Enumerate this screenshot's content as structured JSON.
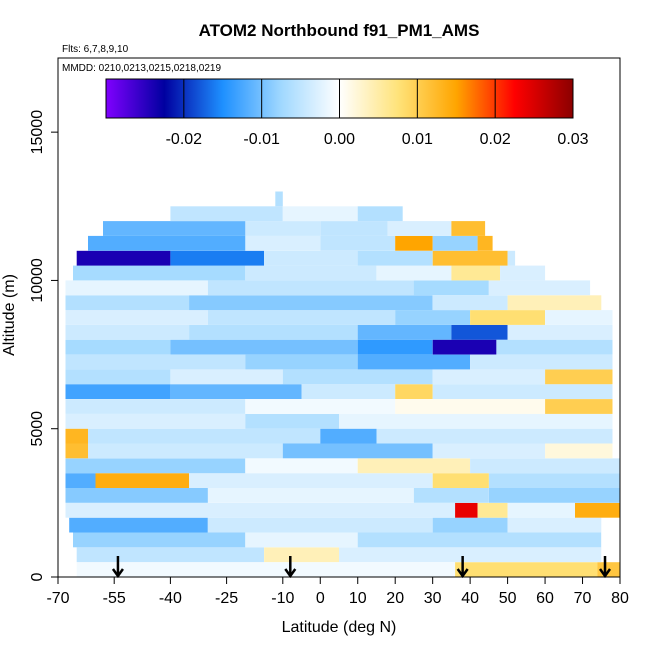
{
  "chart_data": {
    "type": "heatmap",
    "title": "ATOM2 Northbound f91_PM1_AMS",
    "flights_note": "Flts: 6,7,8,9,10",
    "dates_note": "MMDD: 0210,0213,0215,0218,0219",
    "xlabel": "Latitude (deg N)",
    "ylabel": "Altitude (m)",
    "xlim": [
      -70,
      80
    ],
    "ylim": [
      0,
      17500
    ],
    "x_ticks": [
      -70,
      -55,
      -40,
      -25,
      -10,
      0,
      10,
      20,
      30,
      40,
      50,
      60,
      70,
      80
    ],
    "y_ticks": [
      0,
      5000,
      10000,
      15000
    ],
    "colorbar": {
      "range": [
        -0.03,
        0.03
      ],
      "ticks": [
        -0.02,
        -0.01,
        0.0,
        0.01,
        0.02,
        0.03
      ],
      "tick_labels": [
        "-0.02",
        "-0.01",
        "0.00",
        "0.01",
        "0.02",
        "0.03"
      ],
      "colors": [
        "#8000ff",
        "#0000a0",
        "#1e90ff",
        "#a0d8ff",
        "#ffffff",
        "#ffe37a",
        "#ffa500",
        "#ff0000",
        "#8b0000"
      ]
    },
    "arrows_latitude": [
      -54,
      -8,
      38,
      76
    ],
    "bands": [
      {
        "y0": 0,
        "y1": 500,
        "segs": [
          [
            -65,
            36,
            -0.001
          ],
          [
            36,
            74,
            0.008
          ],
          [
            74,
            80,
            0.011
          ]
        ]
      },
      {
        "y0": 500,
        "y1": 1000,
        "segs": [
          [
            -65,
            -15,
            -0.005
          ],
          [
            -15,
            5,
            0.004
          ],
          [
            5,
            75,
            -0.003
          ]
        ]
      },
      {
        "y0": 1000,
        "y1": 1500,
        "segs": [
          [
            -66,
            -20,
            -0.008
          ],
          [
            -20,
            10,
            -0.002
          ],
          [
            10,
            75,
            -0.006
          ]
        ]
      },
      {
        "y0": 1500,
        "y1": 2000,
        "segs": [
          [
            -67,
            -30,
            -0.012
          ],
          [
            -30,
            30,
            -0.004
          ],
          [
            30,
            50,
            -0.008
          ],
          [
            50,
            75,
            -0.003
          ]
        ]
      },
      {
        "y0": 2000,
        "y1": 2500,
        "segs": [
          [
            -68,
            36,
            -0.003
          ],
          [
            36,
            42,
            0.024
          ],
          [
            42,
            50,
            0.006
          ],
          [
            50,
            68,
            -0.002
          ],
          [
            68,
            80,
            0.014
          ]
        ]
      },
      {
        "y0": 2500,
        "y1": 3000,
        "segs": [
          [
            -68,
            -30,
            -0.009
          ],
          [
            -30,
            25,
            -0.002
          ],
          [
            25,
            45,
            -0.006
          ],
          [
            45,
            80,
            -0.008
          ]
        ]
      },
      {
        "y0": 3000,
        "y1": 3500,
        "segs": [
          [
            -68,
            -60,
            -0.012
          ],
          [
            -60,
            -35,
            0.014
          ],
          [
            -35,
            30,
            -0.003
          ],
          [
            30,
            45,
            0.008
          ],
          [
            45,
            80,
            -0.006
          ]
        ]
      },
      {
        "y0": 3500,
        "y1": 4000,
        "segs": [
          [
            -68,
            -20,
            -0.008
          ],
          [
            -20,
            10,
            -0.001
          ],
          [
            10,
            40,
            0.004
          ],
          [
            40,
            80,
            -0.004
          ]
        ]
      },
      {
        "y0": 4000,
        "y1": 4500,
        "segs": [
          [
            -68,
            -62,
            0.012
          ],
          [
            -62,
            -10,
            -0.004
          ],
          [
            -10,
            30,
            -0.01
          ],
          [
            30,
            60,
            -0.003
          ],
          [
            60,
            78,
            0.002
          ]
        ]
      },
      {
        "y0": 4500,
        "y1": 5000,
        "segs": [
          [
            -68,
            -62,
            0.013
          ],
          [
            -62,
            0,
            -0.005
          ],
          [
            0,
            15,
            -0.012
          ],
          [
            15,
            78,
            -0.004
          ]
        ]
      },
      {
        "y0": 5000,
        "y1": 5500,
        "segs": [
          [
            -68,
            -20,
            -0.003
          ],
          [
            -20,
            5,
            -0.006
          ],
          [
            5,
            78,
            -0.002
          ]
        ]
      },
      {
        "y0": 5500,
        "y1": 6000,
        "segs": [
          [
            -68,
            -20,
            -0.004
          ],
          [
            -20,
            20,
            -0.001
          ],
          [
            20,
            60,
            0.001
          ],
          [
            60,
            78,
            0.01
          ]
        ]
      },
      {
        "y0": 6000,
        "y1": 6500,
        "segs": [
          [
            -68,
            -40,
            -0.013
          ],
          [
            -40,
            -5,
            -0.011
          ],
          [
            -5,
            20,
            -0.004
          ],
          [
            20,
            30,
            0.009
          ],
          [
            30,
            78,
            -0.004
          ]
        ]
      },
      {
        "y0": 6500,
        "y1": 7000,
        "segs": [
          [
            -68,
            -40,
            -0.006
          ],
          [
            -40,
            -10,
            -0.003
          ],
          [
            -10,
            30,
            -0.006
          ],
          [
            30,
            60,
            -0.003
          ],
          [
            60,
            78,
            0.01
          ]
        ]
      },
      {
        "y0": 7000,
        "y1": 7500,
        "segs": [
          [
            -68,
            -20,
            -0.005
          ],
          [
            -20,
            10,
            -0.008
          ],
          [
            10,
            40,
            -0.012
          ],
          [
            40,
            78,
            -0.004
          ]
        ]
      },
      {
        "y0": 7500,
        "y1": 8000,
        "segs": [
          [
            -68,
            -40,
            -0.007
          ],
          [
            -40,
            10,
            -0.01
          ],
          [
            10,
            30,
            -0.014
          ],
          [
            30,
            47,
            -0.024
          ],
          [
            47,
            78,
            -0.006
          ]
        ]
      },
      {
        "y0": 8000,
        "y1": 8500,
        "segs": [
          [
            -68,
            -35,
            -0.004
          ],
          [
            -35,
            10,
            -0.006
          ],
          [
            10,
            35,
            -0.011
          ],
          [
            35,
            50,
            -0.018
          ],
          [
            50,
            78,
            -0.003
          ]
        ]
      },
      {
        "y0": 8500,
        "y1": 9000,
        "segs": [
          [
            -68,
            -30,
            -0.003
          ],
          [
            -30,
            20,
            -0.005
          ],
          [
            20,
            40,
            -0.008
          ],
          [
            40,
            60,
            0.008
          ],
          [
            60,
            78,
            -0.002
          ]
        ]
      },
      {
        "y0": 9000,
        "y1": 9500,
        "segs": [
          [
            -68,
            -35,
            -0.006
          ],
          [
            -35,
            30,
            -0.009
          ],
          [
            30,
            50,
            -0.004
          ],
          [
            50,
            75,
            0.004
          ]
        ]
      },
      {
        "y0": 9500,
        "y1": 10000,
        "segs": [
          [
            -68,
            -30,
            -0.002
          ],
          [
            -30,
            25,
            -0.005
          ],
          [
            25,
            45,
            -0.007
          ],
          [
            45,
            72,
            -0.003
          ]
        ]
      },
      {
        "y0": 10000,
        "y1": 10500,
        "segs": [
          [
            -66,
            -20,
            -0.007
          ],
          [
            -20,
            15,
            -0.004
          ],
          [
            15,
            35,
            -0.002
          ],
          [
            35,
            48,
            0.006
          ],
          [
            48,
            60,
            -0.003
          ]
        ]
      },
      {
        "y0": 10500,
        "y1": 11000,
        "segs": [
          [
            -65,
            -40,
            -0.024
          ],
          [
            -40,
            -15,
            -0.016
          ],
          [
            -15,
            10,
            -0.004
          ],
          [
            10,
            30,
            -0.006
          ],
          [
            30,
            50,
            0.012
          ],
          [
            50,
            52,
            -0.004
          ]
        ]
      },
      {
        "y0": 11000,
        "y1": 11500,
        "segs": [
          [
            -62,
            -20,
            -0.012
          ],
          [
            -20,
            0,
            -0.003
          ],
          [
            0,
            20,
            -0.005
          ],
          [
            20,
            30,
            0.015
          ],
          [
            30,
            42,
            -0.008
          ],
          [
            42,
            46,
            0.013
          ]
        ]
      },
      {
        "y0": 11500,
        "y1": 12000,
        "segs": [
          [
            -58,
            -20,
            -0.011
          ],
          [
            -20,
            0,
            -0.004
          ],
          [
            0,
            18,
            -0.005
          ],
          [
            18,
            35,
            -0.003
          ],
          [
            35,
            44,
            0.012
          ]
        ]
      },
      {
        "y0": 12000,
        "y1": 12500,
        "segs": [
          [
            -40,
            -10,
            -0.005
          ],
          [
            -10,
            10,
            -0.002
          ],
          [
            10,
            22,
            -0.006
          ]
        ]
      },
      {
        "y0": 12500,
        "y1": 13000,
        "segs": [
          [
            -12,
            -10,
            -0.006
          ]
        ]
      }
    ]
  }
}
